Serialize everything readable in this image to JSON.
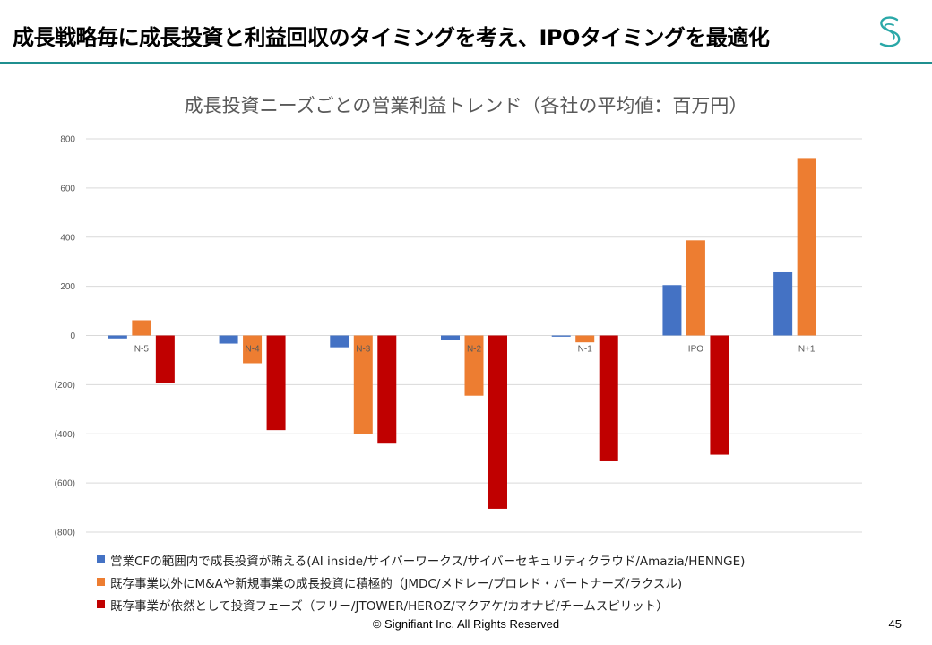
{
  "slide": {
    "title": "成長戦略毎に成長投資と利益回収のタイミングを考え、IPOタイミングを最適化",
    "footer": "© Signifiant Inc. All Rights Reserved",
    "page_number": "45"
  },
  "colors": {
    "rule": "#1f8f8f",
    "logo": "#2aa8a8",
    "series": [
      "#4472c4",
      "#ed7d31",
      "#c00000"
    ],
    "grid": "#d9d9d9",
    "tick_text": "#595959"
  },
  "chart_data": {
    "type": "bar",
    "title": "成長投資ニーズごとの営業利益トレンド（各社の平均値：百万円）",
    "categories": [
      "N-5",
      "N-4",
      "N-3",
      "N-2",
      "N-1",
      "IPO",
      "N+1"
    ],
    "y_ticks": [
      "800",
      "600",
      "400",
      "200",
      "0",
      "(200)",
      "(400)",
      "(600)",
      "(800)"
    ],
    "ylim": [
      -800,
      800
    ],
    "series": [
      {
        "name": "営業CFの範囲内で成長投資が賄える(AI inside/サイバーワークス/サイバーセキュリティクラウド/Amazia/HENNGE)",
        "values": [
          -12,
          -33,
          -48,
          -20,
          -5,
          205,
          257
        ]
      },
      {
        "name": "既存事業以外にM&Aや新規事業の成長投資に積極的（JMDC/メドレー/プロレド・パートナーズ/ラクスル)",
        "values": [
          62,
          -113,
          -400,
          -245,
          -28,
          387,
          722
        ]
      },
      {
        "name": "既存事業が依然として投資フェーズ（フリー/JTOWER/HEROZ/マクアケ/カオナビ/チームスピリット）",
        "values": [
          -195,
          -385,
          -440,
          -705,
          -512,
          -485,
          0
        ]
      }
    ]
  }
}
